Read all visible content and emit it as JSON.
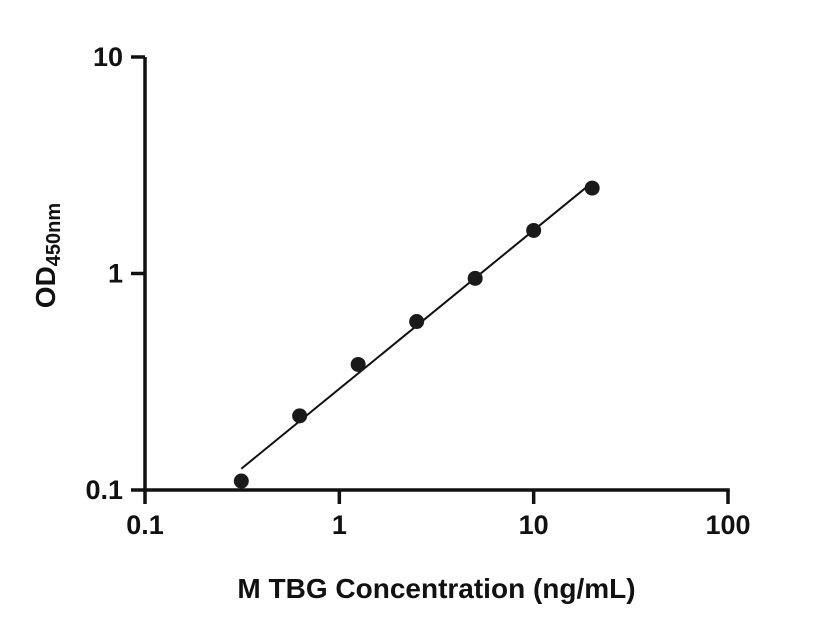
{
  "chart_data": {
    "type": "scatter",
    "title": "",
    "xlabel": "M TBG Concentration (ng/mL)",
    "ylabel_main": "OD",
    "ylabel_sub": "450nm",
    "xscale": "log",
    "yscale": "log",
    "xlim": [
      0.1,
      100
    ],
    "ylim": [
      0.1,
      10
    ],
    "xticks": [
      0.1,
      1,
      10,
      100
    ],
    "xtick_labels": [
      "0.1",
      "1",
      "10",
      "100"
    ],
    "yticks": [
      0.1,
      1,
      10
    ],
    "ytick_labels": [
      "0.1",
      "1",
      "10"
    ],
    "x": [
      0.313,
      0.625,
      1.25,
      2.5,
      5,
      10,
      20
    ],
    "y": [
      0.11,
      0.22,
      0.38,
      0.6,
      0.95,
      1.58,
      2.48
    ],
    "grid": false,
    "legend": "none",
    "axis_color": "#111111",
    "line_color": "#111111",
    "marker_color": "#1a1a1a"
  }
}
